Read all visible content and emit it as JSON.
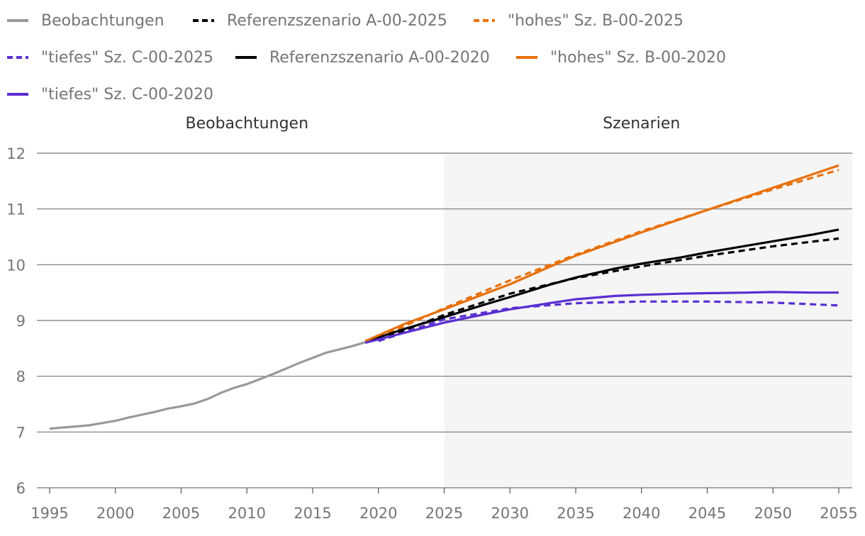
{
  "chart_data": {
    "type": "line",
    "title": "",
    "xlabel": "",
    "ylabel": "",
    "xlim": [
      1995,
      2055
    ],
    "ylim": [
      6,
      12
    ],
    "y_ticks": [
      6,
      7,
      8,
      9,
      10,
      11,
      12
    ],
    "x_ticks": [
      1995,
      2000,
      2005,
      2010,
      2015,
      2020,
      2025,
      2030,
      2035,
      2040,
      2045,
      2050,
      2055
    ],
    "grid": "horizontal",
    "legend_position": "top",
    "sections": [
      {
        "label": "Beobachtungen",
        "from": 1995,
        "to": 2025,
        "shaded": false
      },
      {
        "label": "Szenarien",
        "from": 2025,
        "to": 2055,
        "shaded": true
      }
    ],
    "series": [
      {
        "name": "Beobachtungen",
        "color": "#999999",
        "dash": "solid",
        "x": [
          1995,
          1996,
          1997,
          1998,
          1999,
          2000,
          2001,
          2002,
          2003,
          2004,
          2005,
          2006,
          2007,
          2008,
          2009,
          2010,
          2011,
          2012,
          2013,
          2014,
          2015,
          2016,
          2017,
          2018,
          2019
        ],
        "values": [
          7.06,
          7.08,
          7.1,
          7.12,
          7.16,
          7.2,
          7.26,
          7.31,
          7.36,
          7.42,
          7.46,
          7.51,
          7.59,
          7.7,
          7.79,
          7.86,
          7.95,
          8.04,
          8.14,
          8.24,
          8.33,
          8.42,
          8.48,
          8.54,
          8.61
        ]
      },
      {
        "name": "Referenzszenario A-00-2025",
        "color": "#000000",
        "dash": "dashed",
        "x": [
          2020,
          2025,
          2030,
          2035,
          2040,
          2045,
          2050,
          2055
        ],
        "values": [
          8.64,
          9.1,
          9.48,
          9.76,
          9.97,
          10.16,
          10.33,
          10.47
        ]
      },
      {
        "name": "\"hohes\" Sz. B-00-2025",
        "color": "#e8700a",
        "dash": "dashed",
        "x": [
          2020,
          2025,
          2030,
          2035,
          2040,
          2045,
          2050,
          2055
        ],
        "values": [
          8.69,
          9.22,
          9.72,
          10.18,
          10.6,
          10.98,
          11.35,
          11.7
        ]
      },
      {
        "name": "\"tiefes\" Sz. C-00-2025",
        "color": "#5a2ed1",
        "dash": "dashed",
        "x": [
          2020,
          2025,
          2030,
          2035,
          2040,
          2045,
          2050,
          2055
        ],
        "values": [
          8.63,
          9.02,
          9.22,
          9.31,
          9.34,
          9.34,
          9.32,
          9.27
        ]
      },
      {
        "name": "Referenzszenario A-00-2020",
        "color": "#000000",
        "dash": "solid",
        "x": [
          2019,
          2022,
          2025,
          2028,
          2030,
          2033,
          2035,
          2038,
          2040,
          2043,
          2045,
          2048,
          2050,
          2053,
          2055
        ],
        "values": [
          8.62,
          8.85,
          9.06,
          9.28,
          9.42,
          9.64,
          9.77,
          9.93,
          10.02,
          10.13,
          10.22,
          10.34,
          10.42,
          10.54,
          10.63
        ]
      },
      {
        "name": "\"hohes\" Sz. B-00-2020",
        "color": "#e8700a",
        "dash": "solid",
        "x": [
          2019,
          2022,
          2025,
          2028,
          2030,
          2033,
          2035,
          2038,
          2040,
          2043,
          2045,
          2048,
          2050,
          2053,
          2055
        ],
        "values": [
          8.63,
          8.94,
          9.2,
          9.47,
          9.65,
          9.96,
          10.16,
          10.41,
          10.58,
          10.82,
          10.98,
          11.22,
          11.38,
          11.62,
          11.78
        ]
      },
      {
        "name": "\"tiefes\" Sz. C-00-2020",
        "color": "#5a2ed1",
        "dash": "solid",
        "x": [
          2019,
          2021,
          2023,
          2025,
          2027,
          2030,
          2033,
          2035,
          2038,
          2040,
          2043,
          2045,
          2048,
          2050,
          2053,
          2055
        ],
        "values": [
          8.6,
          8.72,
          8.84,
          8.96,
          9.06,
          9.2,
          9.31,
          9.38,
          9.44,
          9.46,
          9.48,
          9.49,
          9.5,
          9.51,
          9.5,
          9.5
        ]
      }
    ]
  }
}
